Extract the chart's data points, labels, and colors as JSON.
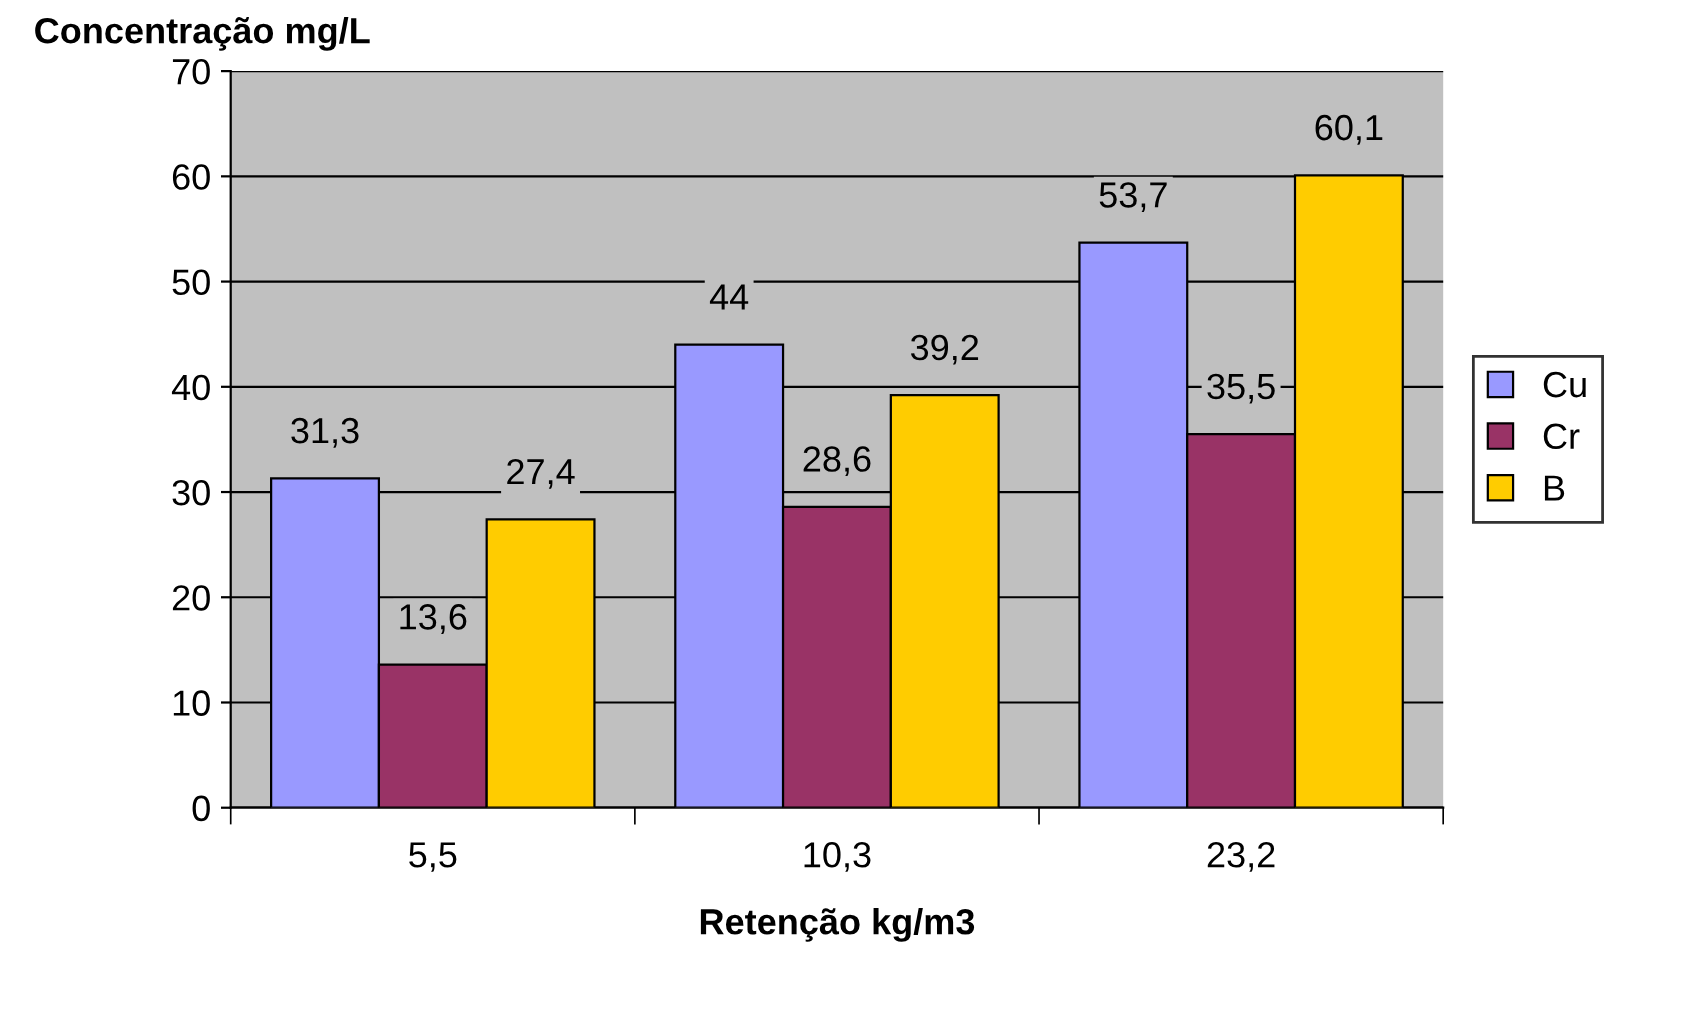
{
  "chart_data": {
    "type": "bar",
    "title": "Concentração mg/L",
    "xlabel": "Retenção kg/m3",
    "categories": [
      "5,5",
      "10,3",
      "23,2"
    ],
    "series": [
      {
        "name": "Cu",
        "color": "#9999ff",
        "values": [
          31.3,
          44,
          53.7
        ],
        "value_labels": [
          "31,3",
          "44",
          "53,7"
        ]
      },
      {
        "name": "Cr",
        "color": "#993366",
        "values": [
          13.6,
          28.6,
          35.5
        ],
        "value_labels": [
          "13,6",
          "28,6",
          "35,5"
        ]
      },
      {
        "name": "B",
        "color": "#ffcc00",
        "values": [
          27.4,
          39.2,
          60.1
        ],
        "value_labels": [
          "27,4",
          "39,2",
          "60,1"
        ]
      }
    ],
    "ylim": [
      0,
      70
    ],
    "yticks": [
      0,
      10,
      20,
      30,
      40,
      50,
      60,
      70
    ],
    "grid": "y",
    "legend": "right"
  }
}
